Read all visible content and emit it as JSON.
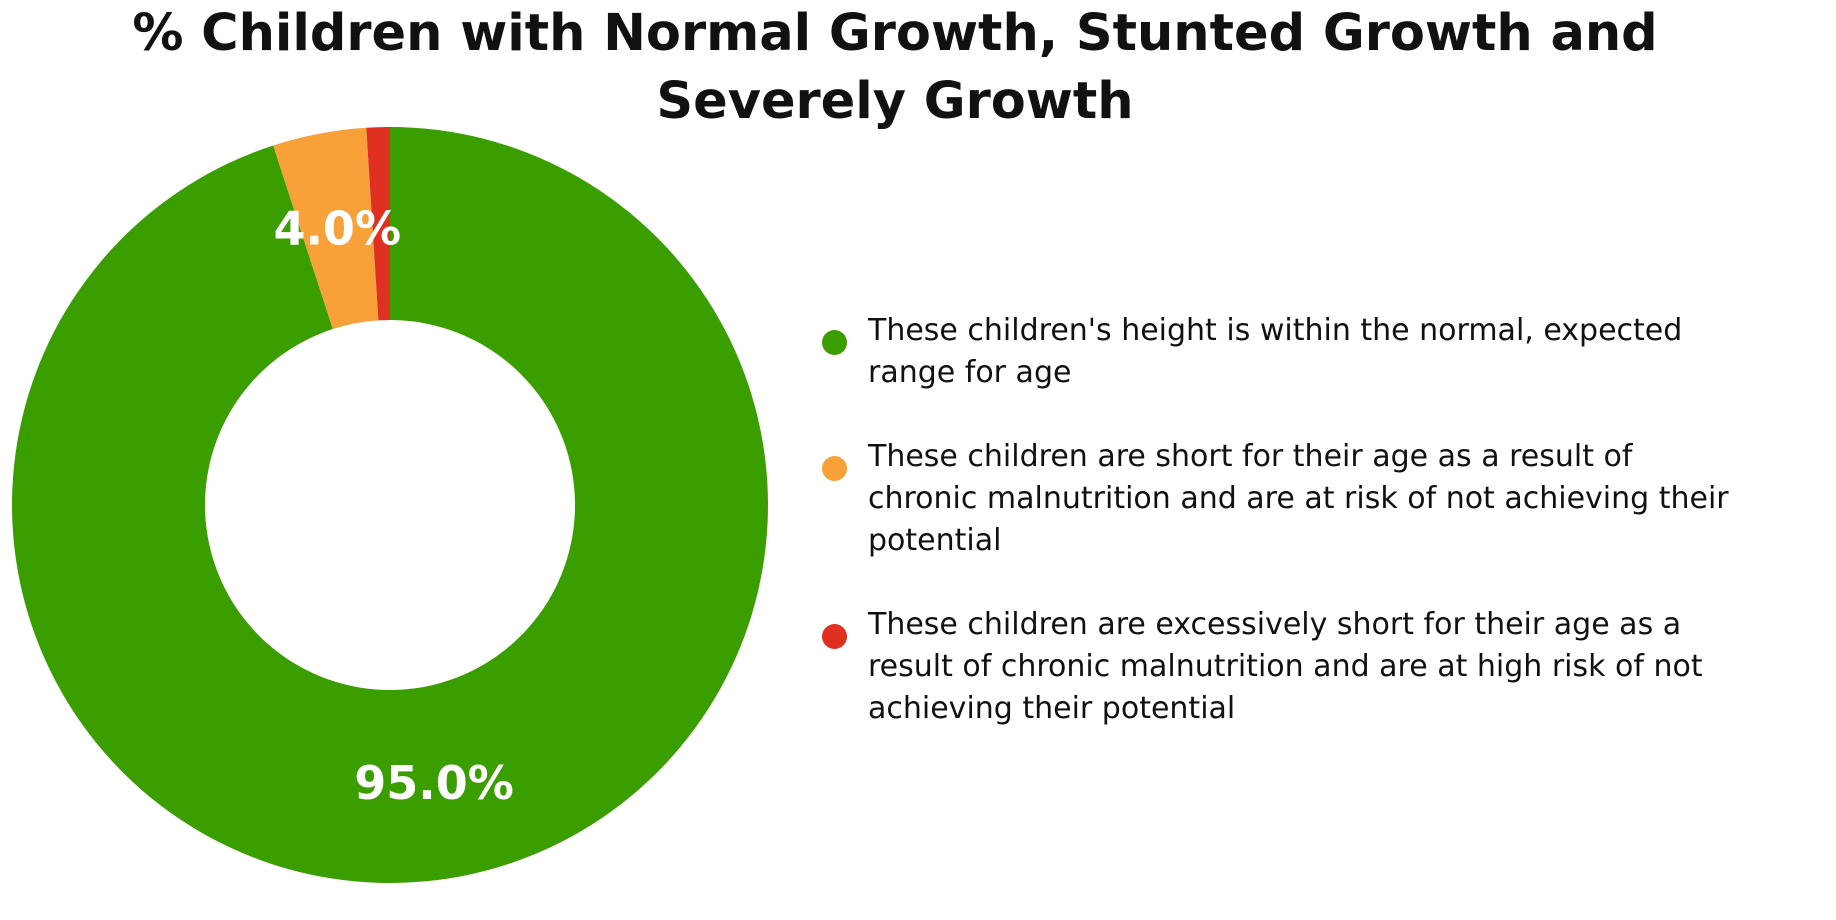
{
  "chart_data": {
    "type": "pie",
    "style": "donut",
    "title_lines": [
      "% Children with Normal Growth, Stunted Growth and",
      "Severely Growth"
    ],
    "slices": [
      {
        "value": 95.0,
        "label": "95.0%",
        "legend": "These children's height is within the normal, expected range for age",
        "color": "#3a9e00"
      },
      {
        "value": 4.0,
        "label": "4.0%",
        "legend": "These children are short for their age as a result of chronic malnutrition and are at risk of not achieving their potential",
        "color": "#f7a138"
      },
      {
        "value": 1.0,
        "label": "",
        "legend": "These children are excessively short for their age as a result of chronic malnutrition and are at high risk of not achieving their potential",
        "color": "#e03021"
      }
    ],
    "label_color": "#ffffff",
    "legend_position": "right"
  }
}
